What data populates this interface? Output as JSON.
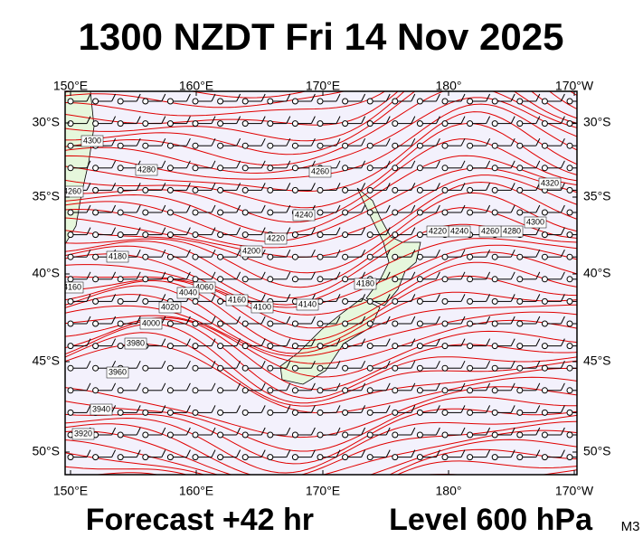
{
  "header": {
    "title": "1300 NZDT Fri 14 Nov 2025"
  },
  "map": {
    "top_lon_labels": [
      "150°E",
      "160°E",
      "170°E",
      "180°",
      "170°W"
    ],
    "bottom_lon_labels": [
      "150°E",
      "160°E",
      "170°E",
      "180°",
      "170°W"
    ],
    "left_lat_labels": [
      "30°S",
      "35°S",
      "40°S",
      "45°S",
      "50°S"
    ],
    "right_lat_labels": [
      "30°S",
      "35°S",
      "40°S",
      "45°S",
      "50°S"
    ],
    "contour_labels": [
      "4300",
      "4280",
      "4260",
      "4260",
      "4240",
      "4220",
      "4200",
      "4180",
      "4160",
      "4060",
      "4040",
      "4020",
      "4000",
      "3980",
      "3960",
      "3940",
      "3920",
      "4180",
      "4140",
      "4100",
      "4160",
      "4320",
      "4300",
      "4280",
      "4260",
      "4240",
      "4220"
    ]
  },
  "footer": {
    "forecast": "Forecast +42 hr",
    "level": "Level 600 hPa",
    "model": "M3"
  }
}
